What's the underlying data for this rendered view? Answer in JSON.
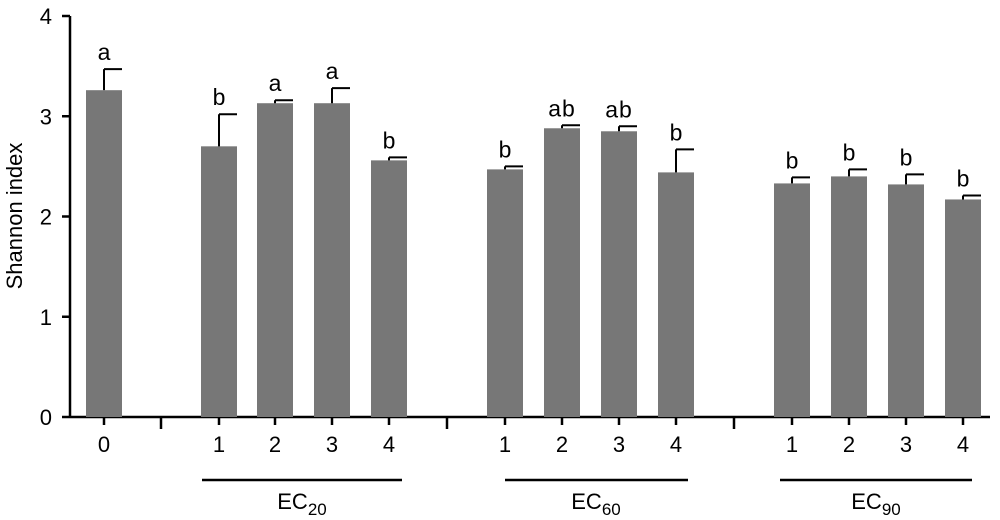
{
  "chart_data": {
    "type": "bar",
    "ylabel": "Shannon index",
    "ylim": [
      0,
      4
    ],
    "yticks": [
      "0",
      "1",
      "2",
      "3",
      "4"
    ],
    "bar_color": "#777777",
    "grid": false,
    "bars": [
      {
        "x": "0",
        "group": "",
        "value": 3.26,
        "error": 0.21,
        "letter": "a"
      },
      {
        "x": "1",
        "group": "EC20",
        "value": 2.7,
        "error": 0.32,
        "letter": "b"
      },
      {
        "x": "2",
        "group": "EC20",
        "value": 3.13,
        "error": 0.03,
        "letter": "a"
      },
      {
        "x": "3",
        "group": "EC20",
        "value": 3.13,
        "error": 0.15,
        "letter": "a"
      },
      {
        "x": "4",
        "group": "EC20",
        "value": 2.56,
        "error": 0.03,
        "letter": "b"
      },
      {
        "x": "1",
        "group": "EC60",
        "value": 2.47,
        "error": 0.03,
        "letter": "b"
      },
      {
        "x": "2",
        "group": "EC60",
        "value": 2.88,
        "error": 0.03,
        "letter": "ab"
      },
      {
        "x": "3",
        "group": "EC60",
        "value": 2.85,
        "error": 0.05,
        "letter": "ab"
      },
      {
        "x": "4",
        "group": "EC60",
        "value": 2.44,
        "error": 0.23,
        "letter": "b"
      },
      {
        "x": "1",
        "group": "EC90",
        "value": 2.33,
        "error": 0.06,
        "letter": "b"
      },
      {
        "x": "2",
        "group": "EC90",
        "value": 2.4,
        "error": 0.07,
        "letter": "b"
      },
      {
        "x": "3",
        "group": "EC90",
        "value": 2.32,
        "error": 0.1,
        "letter": "b"
      },
      {
        "x": "4",
        "group": "EC90",
        "value": 2.17,
        "error": 0.04,
        "letter": "b"
      }
    ],
    "groups": [
      {
        "base": "EC",
        "sub": "20"
      },
      {
        "base": "EC",
        "sub": "60"
      },
      {
        "base": "EC",
        "sub": "90"
      }
    ]
  }
}
